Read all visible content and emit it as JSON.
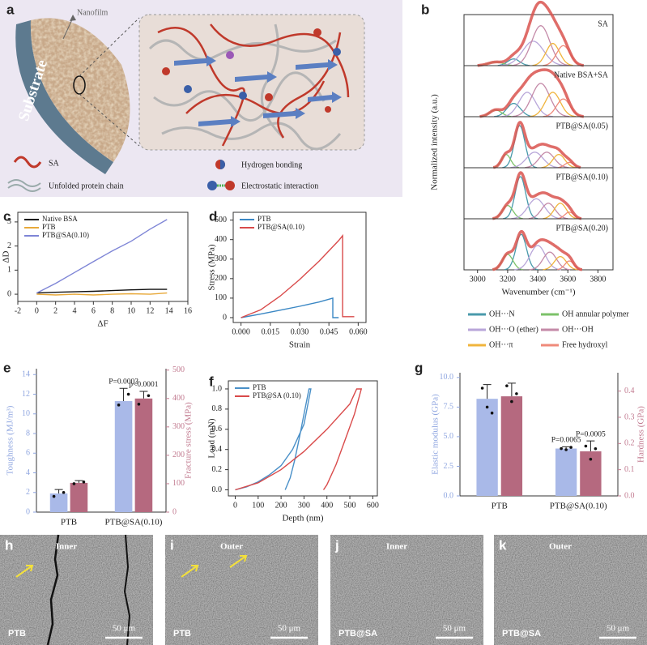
{
  "panel_a": {
    "panel": "a",
    "nanofilm": "Nanofilm",
    "substrate": "Substrate",
    "sa": "SA",
    "protein": "Unfolded protein chain",
    "hbond": "Hydrogen bonding",
    "electro": "Electrostatic interaction"
  },
  "chart_data": [
    {
      "type": "spectra",
      "panel": "b",
      "ylabel": "Normalized intensity (a.u.)",
      "xlabel": "Wavenumber (cm⁻¹)",
      "xlim": [
        2910,
        3900
      ],
      "xticks": [
        3000,
        3200,
        3400,
        3600,
        3800
      ],
      "ylim": [
        0,
        1.15
      ],
      "fit_color": "#d9534f",
      "components": [
        {
          "name": "OH···N",
          "color": "#4a9aab"
        },
        {
          "name": "OH annular polymer",
          "color": "#7cc26a"
        },
        {
          "name": "OH···O (ether)",
          "color": "#b8a6d9"
        },
        {
          "name": "OH···OH",
          "color": "#c48aa8"
        },
        {
          "name": "OH···π",
          "color": "#f0b43c"
        },
        {
          "name": "Free hydroxyl",
          "color": "#ef8a7a"
        }
      ],
      "subplots": [
        {
          "label": "SA",
          "centers": [
            3240,
            3120,
            3370,
            3420,
            3500,
            3570
          ],
          "heights": [
            0.15,
            0.08,
            0.55,
            0.9,
            0.5,
            0.45
          ],
          "widths": [
            40,
            50,
            70,
            60,
            45,
            45
          ]
        },
        {
          "label": "Native BSA+SA",
          "centers": [
            3240,
            3120,
            3330,
            3420,
            3500,
            3570
          ],
          "heights": [
            0.3,
            0.15,
            0.55,
            0.75,
            0.55,
            0.4
          ],
          "widths": [
            45,
            40,
            55,
            60,
            50,
            45
          ]
        },
        {
          "label": "PTB@SA(0.05)",
          "centers": [
            3280,
            3190,
            3380,
            3460,
            3540,
            3610
          ],
          "heights": [
            0.95,
            0.3,
            0.35,
            0.35,
            0.3,
            0.12
          ],
          "widths": [
            35,
            30,
            55,
            50,
            40,
            30
          ]
        },
        {
          "label": "PTB@SA(0.10)",
          "centers": [
            3285,
            3200,
            3390,
            3470,
            3550,
            3610
          ],
          "heights": [
            0.95,
            0.3,
            0.45,
            0.35,
            0.35,
            0.15
          ],
          "widths": [
            35,
            35,
            55,
            45,
            40,
            30
          ]
        },
        {
          "label": "PTB@SA(0.20)",
          "centers": [
            3290,
            3200,
            3400,
            3480,
            3550,
            3610
          ],
          "heights": [
            0.8,
            0.35,
            0.55,
            0.4,
            0.3,
            0.2
          ],
          "widths": [
            35,
            35,
            50,
            45,
            40,
            30
          ]
        }
      ]
    },
    {
      "type": "line",
      "panel": "c",
      "xlabel": "ΔF",
      "ylabel": "ΔD",
      "xlim": [
        -2,
        16
      ],
      "xticks": [
        -2,
        0,
        2,
        4,
        6,
        8,
        10,
        12,
        14,
        16
      ],
      "ylim": [
        -0.3,
        3.4
      ],
      "yticks": [
        0,
        1,
        2,
        3
      ],
      "legend": "upper left",
      "x": [
        0,
        2,
        4,
        6,
        8,
        10,
        12,
        13.8
      ],
      "series": [
        {
          "name": "Native BSA",
          "color": "#111111",
          "values": [
            0.05,
            0.08,
            0.1,
            0.12,
            0.15,
            0.18,
            0.2,
            0.2
          ]
        },
        {
          "name": "PTB",
          "color": "#e8a93a",
          "values": [
            0,
            -0.03,
            0,
            -0.03,
            0,
            0.02,
            0,
            0.05
          ]
        },
        {
          "name": "PTB@SA(0.10)",
          "color": "#7e85d6",
          "values": [
            0.05,
            0.45,
            0.9,
            1.35,
            1.8,
            2.2,
            2.7,
            3.1
          ]
        }
      ]
    },
    {
      "type": "line",
      "panel": "d",
      "xlabel": "Strain",
      "ylabel": "Stress (MPa)",
      "xlim": [
        -0.004,
        0.064
      ],
      "xticks": [
        {
          "value": 0,
          "label": "0.000"
        },
        0.015,
        {
          "value": 0.03,
          "label": "0.030"
        },
        0.045,
        {
          "value": 0.06,
          "label": "0.060"
        }
      ],
      "ylim": [
        -25,
        540
      ],
      "yticks": [
        0,
        100,
        200,
        300,
        400,
        500
      ],
      "legend": "upper left",
      "series": [
        {
          "name": "PTB",
          "color": "#3a87c4",
          "x": [
            0,
            0.01,
            0.02,
            0.03,
            0.04,
            0.047,
            0.047,
            0.05
          ],
          "values": [
            0,
            18,
            38,
            58,
            80,
            100,
            0,
            0
          ]
        },
        {
          "name": "PTB@SA(0.10)",
          "color": "#d94a4a",
          "x": [
            0,
            0.01,
            0.02,
            0.03,
            0.04,
            0.05,
            0.052,
            0.052,
            0.058
          ],
          "values": [
            0,
            40,
            110,
            195,
            290,
            395,
            420,
            5,
            5
          ]
        }
      ]
    },
    {
      "type": "bar",
      "panel": "e",
      "categories": [
        "PTB",
        "PTB@SA(0.10)"
      ],
      "ylabel": "Toughness (MJ/m³)",
      "y2label": "Fracture stress (MPa)",
      "ylim": [
        0,
        14.6
      ],
      "yticks": [
        0,
        2,
        4,
        6,
        8,
        10,
        12,
        14
      ],
      "y2lim": [
        0,
        505
      ],
      "y2ticks": [
        0,
        100,
        200,
        300,
        400,
        500
      ],
      "ycolor": "#8fa6e0",
      "y2color": "#c27b90",
      "series": [
        {
          "color": "#a9b9e8",
          "values": [
            1.9,
            11.3
          ],
          "errors": [
            0.4,
            1.3
          ],
          "points": [
            [
              1.6,
              2.0
            ],
            [
              10.9,
              12.0
            ]
          ]
        },
        {
          "axis": "y2",
          "color": "#b5697f",
          "values": [
            103,
            400
          ],
          "errors": [
            8,
            25
          ],
          "points": [
            [
              100,
              106
            ],
            [
              380,
              410
            ]
          ]
        }
      ],
      "annotations": [
        "P=0.0003",
        "p<0.0001"
      ]
    },
    {
      "type": "line",
      "panel": "f",
      "xlabel": "Depth (nm)",
      "ylabel": "Load (mN)",
      "xlim": [
        -30,
        620
      ],
      "xticks": [
        0,
        100,
        200,
        300,
        400,
        500,
        600
      ],
      "ylim": [
        -0.06,
        1.08
      ],
      "yticks": [
        {
          "value": 0,
          "label": "0.0"
        },
        0.2,
        0.4,
        0.6,
        0.8,
        {
          "value": 1,
          "label": "1.0"
        }
      ],
      "legend": "upper left",
      "series": [
        {
          "name": "PTB",
          "color": "#4a90c8",
          "x": [
            0,
            50,
            100,
            150,
            200,
            250,
            300,
            330,
            322,
            300,
            280,
            260,
            240,
            218
          ],
          "values": [
            0,
            0.03,
            0.08,
            0.15,
            0.24,
            0.4,
            0.65,
            1.0,
            1.0,
            0.75,
            0.52,
            0.3,
            0.12,
            0
          ]
        },
        {
          "name": "PTB@SA (0.10)",
          "color": "#d94a4a",
          "x": [
            0,
            100,
            200,
            300,
            400,
            500,
            530,
            550,
            520,
            480,
            440,
            400,
            385
          ],
          "values": [
            0,
            0.07,
            0.2,
            0.38,
            0.6,
            0.85,
            1.0,
            1.0,
            0.75,
            0.5,
            0.25,
            0.05,
            0
          ]
        }
      ]
    },
    {
      "type": "bar",
      "panel": "g",
      "categories": [
        "PTB",
        "PTB@SA(0.10)"
      ],
      "ylabel": "Elastic modulus (GPa)",
      "y2label": "Hardness (GPa)",
      "ylim": [
        0,
        10.4
      ],
      "yticks": [
        {
          "value": 0,
          "label": "0.0"
        },
        2.5,
        {
          "value": 5,
          "label": "5.0"
        },
        7.5,
        {
          "value": 10,
          "label": "10.0"
        }
      ],
      "y2lim": [
        0,
        0.47
      ],
      "y2ticks": [
        {
          "value": 0,
          "label": "0.0"
        },
        0.1,
        0.2,
        0.3,
        0.4
      ],
      "ycolor": "#8fa6e0",
      "y2color": "#c27b90",
      "series": [
        {
          "color": "#a9b9e8",
          "values": [
            8.2,
            4.0
          ],
          "errors": [
            1.2,
            0.15
          ],
          "points": [
            [
              9.1,
              7.5,
              7.0
            ],
            [
              4.0,
              3.9,
              4.1
            ]
          ]
        },
        {
          "axis": "y2",
          "color": "#b5697f",
          "values": [
            0.38,
            0.17
          ],
          "errors": [
            0.05,
            0.04
          ],
          "points": [
            [
              0.42,
              0.36,
              0.39
            ],
            [
              0.19,
              0.14,
              0.18
            ]
          ]
        }
      ],
      "annotations": [
        "P=0.0065",
        "P=0.0005"
      ]
    }
  ],
  "sem_images": [
    {
      "panel": "h",
      "side": "Inner",
      "sample": "PTB",
      "scale": "50 μm"
    },
    {
      "panel": "i",
      "side": "Outer",
      "sample": "PTB",
      "scale": "50 μm"
    },
    {
      "panel": "j",
      "side": "Inner",
      "sample": "PTB@SA",
      "scale": "50 μm"
    },
    {
      "panel": "k",
      "side": "Outer",
      "sample": "PTB@SA",
      "scale": "50 μm"
    }
  ]
}
